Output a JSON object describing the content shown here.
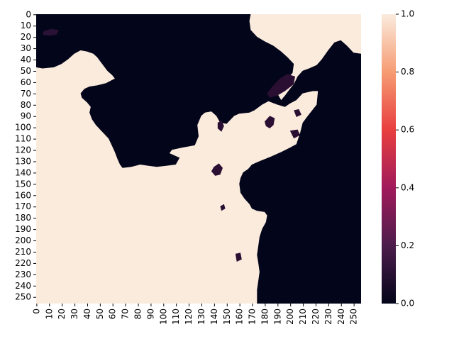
{
  "chart_data": {
    "type": "heatmap",
    "title": "",
    "xlabel": "",
    "ylabel": "",
    "grid": false,
    "x_range": [
      0,
      256
    ],
    "y_range": [
      0,
      256
    ],
    "x_tick_labels": [
      "0",
      "10",
      "20",
      "30",
      "40",
      "50",
      "60",
      "70",
      "80",
      "90",
      "100",
      "110",
      "120",
      "130",
      "140",
      "150",
      "160",
      "170",
      "180",
      "190",
      "200",
      "210",
      "220",
      "230",
      "240",
      "250"
    ],
    "y_tick_labels": [
      "0",
      "10",
      "20",
      "30",
      "40",
      "50",
      "60",
      "70",
      "80",
      "90",
      "100",
      "110",
      "120",
      "130",
      "140",
      "150",
      "160",
      "170",
      "180",
      "190",
      "200",
      "210",
      "220",
      "230",
      "240",
      "250"
    ],
    "value_range": [
      0.0,
      1.0
    ],
    "colorbar": {
      "ticks": [
        "0.0",
        "0.2",
        "0.4",
        "0.6",
        "0.8",
        "1.0"
      ],
      "colormap": "rocket",
      "colors": [
        "#03051a",
        "#4c1d4b",
        "#a11a5b",
        "#e83f3f",
        "#f69c73",
        "#faebdd"
      ]
    },
    "description_of_values": "binary-like mask: 1.0 (light) over land regions on left/bottom-left and upper-right, 0.0 (dark) over large upper-middle region and right/bottom-right region",
    "regions_value_1": [
      {
        "name": "left-land",
        "boundary_x_at_y": [
          [
            0,
            0
          ],
          [
            48,
            0
          ],
          [
            45,
            25
          ],
          [
            35,
            50
          ],
          [
            55,
            60
          ],
          [
            60,
            75
          ],
          [
            80,
            100
          ],
          [
            90,
            120
          ],
          [
            130,
            140
          ],
          [
            140,
            160
          ],
          [
            156,
            175
          ],
          [
            176,
            185
          ],
          [
            183,
            195
          ],
          [
            210,
            201
          ],
          [
            240,
            184
          ],
          [
            256,
            178
          ]
        ]
      },
      {
        "name": "top-right-land",
        "boundary_x_at_y": [
          [
            0,
            168
          ],
          [
            20,
            170
          ],
          [
            40,
            195
          ],
          [
            60,
            205
          ],
          [
            80,
            190
          ],
          [
            100,
            175
          ],
          [
            120,
            180
          ],
          [
            130,
            175
          ],
          [
            140,
            170
          ]
        ]
      }
    ]
  }
}
